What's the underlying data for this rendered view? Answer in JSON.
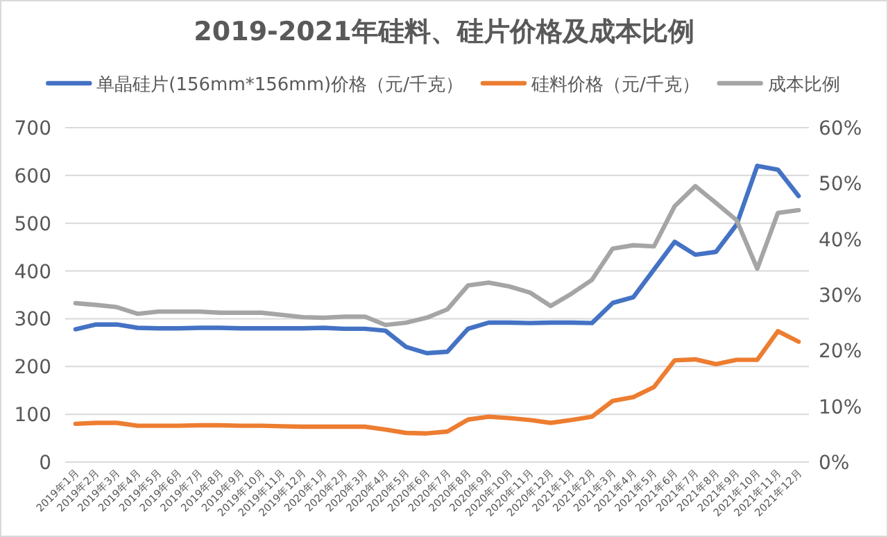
{
  "chart_data": {
    "type": "line",
    "title": "2019-2021年硅料、硅片价格及成本比例",
    "categories": [
      "2019年1月",
      "2019年2月",
      "2019年3月",
      "2019年4月",
      "2019年5月",
      "2019年6月",
      "2019年7月",
      "2019年8月",
      "2019年9月",
      "2019年10月",
      "2019年11月",
      "2019年12月",
      "2020年1月",
      "2020年2月",
      "2020年3月",
      "2020年4月",
      "2020年5月",
      "2020年6月",
      "2020年7月",
      "2020年8月",
      "2020年9月",
      "2020年10月",
      "2020年11月",
      "2020年12月",
      "2021年1月",
      "2021年2月",
      "2021年3月",
      "2021年4月",
      "2021年5月",
      "2021年6月",
      "2021年7月",
      "2021年8月",
      "2021年9月",
      "2021年10月",
      "2021年11月",
      "2021年12月"
    ],
    "series": [
      {
        "name": "单晶硅片(156mm*156mm)价格（元/千克）",
        "color": "#4472c4",
        "values": [
          278,
          288,
          288,
          281,
          280,
          280,
          281,
          281,
          280,
          280,
          280,
          280,
          281,
          279,
          279,
          275,
          241,
          228,
          231,
          279,
          292,
          292,
          291,
          292,
          292,
          291,
          333,
          345,
          403,
          461,
          434,
          440,
          497,
          620,
          612,
          557
        ]
      },
      {
        "name": "硅料价格（元/千克）",
        "color": "#ed7d31",
        "values": [
          80,
          82,
          82,
          76,
          76,
          76,
          77,
          77,
          76,
          76,
          75,
          74,
          74,
          74,
          74,
          68,
          61,
          60,
          64,
          89,
          95,
          92,
          88,
          82,
          88,
          95,
          128,
          136,
          157,
          213,
          215,
          205,
          214,
          214,
          274,
          252
        ]
      },
      {
        "name": "成本比例",
        "color": "#a5a5a5",
        "axis": "y2",
        "values": [
          28.5,
          28.2,
          27.8,
          26.6,
          27.0,
          27.0,
          27.0,
          26.8,
          26.8,
          26.8,
          26.4,
          26.0,
          25.9,
          26.1,
          26.1,
          24.6,
          25.0,
          25.9,
          27.4,
          31.7,
          32.2,
          31.5,
          30.4,
          28.0,
          30.2,
          32.7,
          38.3,
          38.9,
          38.7,
          45.9,
          49.5,
          46.5,
          43.4,
          34.7,
          44.7,
          45.2
        ]
      }
    ],
    "ylim": [
      0,
      700
    ],
    "yticks": [
      0,
      100,
      200,
      300,
      400,
      500,
      600,
      700
    ],
    "y2lim": [
      0,
      60
    ],
    "y2ticks": [
      {
        "value": 0,
        "label": "0%"
      },
      {
        "value": 10,
        "label": "10%"
      },
      {
        "value": 20,
        "label": "20%"
      },
      {
        "value": 30,
        "label": "30%"
      },
      {
        "value": 40,
        "label": "40%"
      },
      {
        "value": 50,
        "label": "50%"
      },
      {
        "value": 60,
        "label": "60%"
      }
    ],
    "grid": "y",
    "legend": "top",
    "marker": "none",
    "line_style": "solid"
  }
}
